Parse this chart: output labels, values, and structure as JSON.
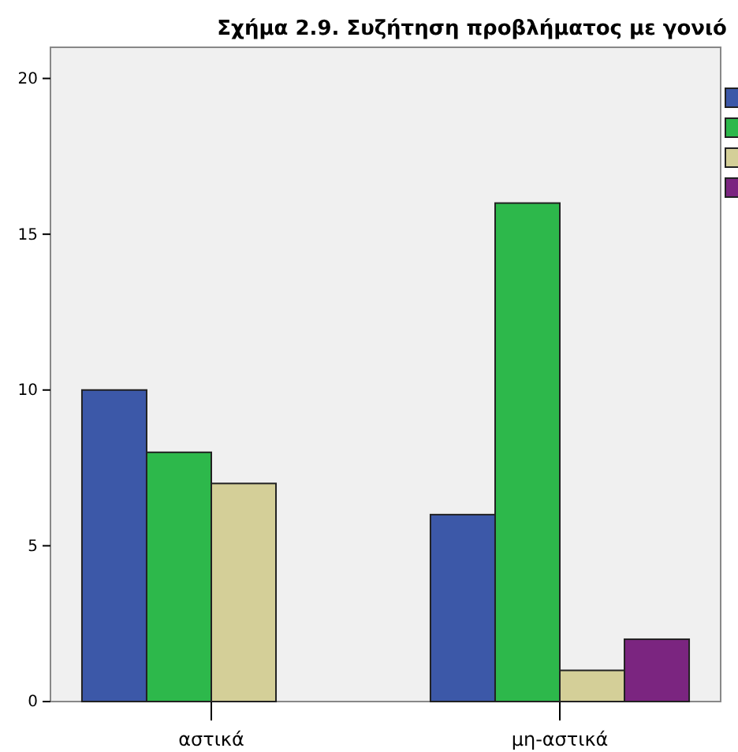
{
  "chart_data": {
    "type": "bar",
    "title": "Σχήμα 2.9. Συζήτηση προβλήματος με γονιό",
    "categories": [
      "αστικά",
      "μη-αστικά"
    ],
    "series": [
      {
        "color": "#3c58a8",
        "values": [
          10,
          6
        ]
      },
      {
        "color": "#2db84b",
        "values": [
          8,
          16
        ]
      },
      {
        "color": "#d4cf98",
        "values": [
          7,
          1
        ]
      },
      {
        "color": "#7b2580",
        "values": [
          null,
          2
        ]
      }
    ],
    "ylim": [
      0,
      21
    ],
    "yticks": [
      0,
      5,
      10,
      15,
      20
    ],
    "grid": false
  }
}
